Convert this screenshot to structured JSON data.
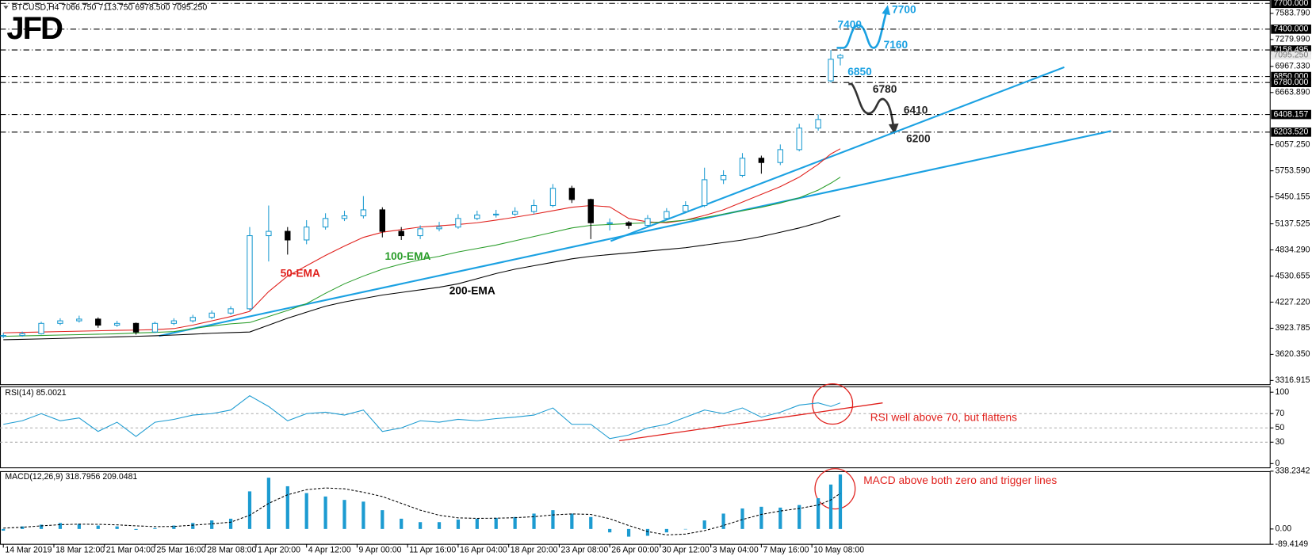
{
  "logo": "JFD",
  "chart_data": [
    {
      "type": "candlestick",
      "title": "BTCUSD,H4  7066.750 7113.750 6978.500 7095.250",
      "x": [
        0,
        6,
        12,
        18,
        24,
        30,
        36,
        42,
        48,
        54,
        60,
        66,
        72,
        78,
        84,
        90,
        96,
        102,
        108,
        114,
        120,
        126,
        132,
        138,
        144,
        150,
        156,
        162,
        168,
        174,
        180,
        186,
        192,
        198,
        204,
        210,
        216,
        222,
        228,
        234,
        240,
        246,
        252,
        258,
        262,
        265
      ],
      "open": [
        3830,
        3840,
        3860,
        3980,
        4010,
        4030,
        3960,
        3980,
        3880,
        3980,
        4010,
        4050,
        4100,
        4150,
        5000,
        5050,
        4950,
        5100,
        5200,
        5230,
        5300,
        5050,
        5000,
        5080,
        5100,
        5200,
        5240,
        5250,
        5280,
        5350,
        5550,
        5420,
        5150,
        5150,
        5120,
        5200,
        5280,
        5350,
        5650,
        5700,
        5900,
        5850,
        6000,
        6250,
        6800,
        7066.75
      ],
      "high": [
        3870,
        3885,
        4000,
        4040,
        4070,
        4050,
        4010,
        3990,
        4000,
        4040,
        4080,
        4130,
        4180,
        5100,
        5350,
        5100,
        5180,
        5260,
        5290,
        5460,
        5330,
        5100,
        5120,
        5160,
        5250,
        5290,
        5300,
        5330,
        5420,
        5600,
        5580,
        5430,
        5200,
        5170,
        5240,
        5320,
        5400,
        5790,
        5760,
        5960,
        5930,
        6060,
        6300,
        6408,
        7158,
        7113.75
      ],
      "low": [
        3810,
        3825,
        3850,
        3960,
        3990,
        3930,
        3940,
        3850,
        3870,
        3960,
        3990,
        4030,
        4080,
        4130,
        4700,
        4780,
        4900,
        5070,
        5170,
        5200,
        4980,
        4950,
        4960,
        5050,
        5080,
        5180,
        5210,
        5230,
        5250,
        5330,
        5380,
        4960,
        5060,
        5080,
        5100,
        5180,
        5260,
        5330,
        5600,
        5680,
        5720,
        5820,
        5980,
        6220,
        6780,
        6978.5
      ],
      "close": [
        3840,
        3860,
        3980,
        4010,
        4030,
        3960,
        3980,
        3880,
        3980,
        4010,
        4050,
        4100,
        4150,
        5000,
        5050,
        4950,
        5100,
        5200,
        5230,
        5300,
        5050,
        5000,
        5080,
        5100,
        5200,
        5240,
        5250,
        5280,
        5350,
        5550,
        5420,
        5150,
        5150,
        5120,
        5200,
        5280,
        5350,
        5650,
        5700,
        5900,
        5850,
        6000,
        6250,
        6350,
        7050,
        7095.25
      ],
      "up_color": "#1c9bd1",
      "down_color": "#000000",
      "series": [
        {
          "name": "50-EMA",
          "color": "#e0201c",
          "values": [
            3870,
            3875,
            3880,
            3885,
            3890,
            3895,
            3900,
            3903,
            3907,
            3920,
            3960,
            4010,
            4060,
            4120,
            4350,
            4530,
            4650,
            4770,
            4880,
            4980,
            5040,
            5070,
            5100,
            5115,
            5130,
            5150,
            5180,
            5215,
            5250,
            5290,
            5330,
            5350,
            5335,
            5200,
            5160,
            5150,
            5180,
            5235,
            5300,
            5390,
            5480,
            5570,
            5680,
            5830,
            5950,
            6010
          ]
        },
        {
          "name": "100-EMA",
          "color": "#2a9d2a",
          "values": [
            3830,
            3835,
            3840,
            3845,
            3850,
            3855,
            3860,
            3868,
            3875,
            3885,
            3920,
            3950,
            3975,
            3990,
            4060,
            4130,
            4210,
            4330,
            4440,
            4530,
            4610,
            4670,
            4720,
            4760,
            4810,
            4850,
            4890,
            4940,
            4990,
            5040,
            5090,
            5120,
            5130,
            5140,
            5150,
            5160,
            5180,
            5210,
            5250,
            5290,
            5330,
            5380,
            5440,
            5530,
            5610,
            5680
          ]
        },
        {
          "name": "200-EMA",
          "color": "#000000",
          "values": [
            3790,
            3795,
            3800,
            3806,
            3812,
            3818,
            3823,
            3830,
            3836,
            3845,
            3855,
            3865,
            3873,
            3880,
            3960,
            4040,
            4110,
            4180,
            4230,
            4270,
            4310,
            4340,
            4370,
            4400,
            4440,
            4500,
            4560,
            4610,
            4650,
            4690,
            4730,
            4760,
            4780,
            4800,
            4820,
            4840,
            4860,
            4890,
            4920,
            4950,
            4990,
            5040,
            5090,
            5150,
            5200,
            5230
          ]
        }
      ],
      "trendlines": [
        {
          "x": [
            49.3,
            350.7
          ],
          "values": [
            3834,
            6216
          ],
          "color": "#1ba1e2"
        },
        {
          "x": [
            192.3,
            335.9
          ],
          "values": [
            4937,
            6958
          ],
          "color": "#1ba1e2"
        }
      ],
      "xlim": [
        -1.06,
        401.1
      ],
      "ylim": [
        3268,
        7739
      ],
      "yticks": [
        {
          "value": 7583.79,
          "label": "7583.790"
        },
        {
          "value": 7279.99,
          "label": "7279.990"
        },
        {
          "value": 6967.33,
          "label": "6967.330"
        },
        {
          "value": 6663.89,
          "label": "6663.890"
        },
        {
          "value": 6057.25,
          "label": "6057.250"
        },
        {
          "value": 5753.59,
          "label": "5753.590"
        },
        {
          "value": 5450.155,
          "label": "5450.155"
        },
        {
          "value": 5137.525,
          "label": "5137.525"
        },
        {
          "value": 4834.29,
          "label": "4834.290"
        },
        {
          "value": 4530.655,
          "label": "4530.655"
        },
        {
          "value": 4227.22,
          "label": "4227.220"
        },
        {
          "value": 3923.785,
          "label": "3923.785"
        },
        {
          "value": 3620.35,
          "label": "3620.350"
        },
        {
          "value": 3316.915,
          "label": "3316.915"
        }
      ],
      "current_price": {
        "value": 7095.25,
        "label": "7095.250"
      },
      "levels": [
        {
          "value": 7700,
          "label": "7700.000"
        },
        {
          "value": 7400,
          "label": "7400.000"
        },
        {
          "value": 7158.495,
          "label": "7158.495"
        },
        {
          "value": 6850,
          "label": "6850.000"
        },
        {
          "value": 6780,
          "label": "6780.000"
        },
        {
          "value": 6408.157,
          "label": "6408.157"
        },
        {
          "value": 6203.52,
          "label": "6203.520"
        }
      ],
      "annotations": [
        {
          "text": "7700",
          "color": "#1ba1e2"
        },
        {
          "text": "7400",
          "color": "#1ba1e2"
        },
        {
          "text": "7160",
          "color": "#1ba1e2"
        },
        {
          "text": "6850",
          "color": "#1ba1e2"
        },
        {
          "text": "6780",
          "color": "#222222"
        },
        {
          "text": "6410",
          "color": "#222222"
        },
        {
          "text": "6200",
          "color": "#222222"
        }
      ]
    },
    {
      "type": "line",
      "title": "RSI(14) 85.0021",
      "color": "#1c9bd1",
      "x": [
        0,
        6,
        12,
        18,
        24,
        30,
        36,
        42,
        48,
        54,
        60,
        66,
        72,
        78,
        84,
        90,
        96,
        102,
        108,
        114,
        120,
        126,
        132,
        138,
        144,
        150,
        156,
        162,
        168,
        174,
        180,
        186,
        192,
        198,
        204,
        210,
        216,
        222,
        228,
        234,
        240,
        246,
        252,
        258,
        262,
        265
      ],
      "values": [
        55,
        60,
        70,
        60,
        64,
        45,
        58,
        38,
        58,
        62,
        68,
        70,
        75,
        95,
        80,
        60,
        70,
        72,
        68,
        75,
        45,
        50,
        60,
        58,
        62,
        60,
        63,
        65,
        68,
        78,
        55,
        55,
        35,
        40,
        50,
        55,
        65,
        75,
        70,
        78,
        65,
        72,
        82,
        85,
        80,
        85.0021
      ],
      "xlim": [
        -1.06,
        401.1
      ],
      "ylim": [
        -5.9,
        108.2
      ],
      "yticks": [
        100,
        70,
        50,
        30,
        0
      ],
      "levels": [
        70,
        50,
        30
      ],
      "trendlines": [
        {
          "x": [
            195,
            278.4
          ],
          "values": [
            32,
            85
          ],
          "color": "#e0201c"
        }
      ],
      "note": "RSI well above 70, but flattens"
    },
    {
      "type": "macd",
      "title": "MACD(12,26,9) 318.7956 209.0481",
      "color": "#1c9bd1",
      "signal_color": "#000000",
      "x": [
        0,
        6,
        12,
        18,
        24,
        30,
        36,
        42,
        48,
        54,
        60,
        66,
        72,
        78,
        84,
        90,
        96,
        102,
        108,
        114,
        120,
        126,
        132,
        138,
        144,
        150,
        156,
        162,
        168,
        174,
        180,
        186,
        192,
        198,
        204,
        210,
        216,
        222,
        228,
        234,
        240,
        246,
        252,
        258,
        262,
        265
      ],
      "values": [
        -10,
        15,
        25,
        35,
        30,
        20,
        15,
        -5,
        5,
        20,
        35,
        50,
        60,
        220,
        300,
        250,
        210,
        190,
        170,
        160,
        110,
        60,
        40,
        40,
        55,
        60,
        65,
        70,
        90,
        110,
        90,
        70,
        -20,
        -45,
        -40,
        -20,
        0,
        50,
        90,
        120,
        130,
        125,
        140,
        180,
        260,
        318.7956
      ],
      "signal": [
        5,
        10,
        18,
        25,
        28,
        27,
        24,
        18,
        14,
        15,
        22,
        30,
        40,
        80,
        150,
        200,
        230,
        240,
        235,
        215,
        190,
        150,
        110,
        80,
        65,
        62,
        63,
        66,
        72,
        82,
        88,
        85,
        60,
        20,
        -15,
        -35,
        -30,
        -10,
        20,
        55,
        85,
        105,
        120,
        140,
        170,
        209.0481
      ],
      "xlim": [
        -1.06,
        401.1
      ],
      "ylim": [
        -89.4149,
        338.2342
      ],
      "yticks": [
        {
          "value": 338.2342,
          "label": "338.2342"
        },
        {
          "value": 0,
          "label": "0.00"
        },
        {
          "value": -89.4149,
          "label": "-89.4149"
        }
      ],
      "xticks": [
        {
          "value": 0,
          "label": "14 Mar 2019"
        },
        {
          "value": 16,
          "label": "18 Mar 12:00"
        },
        {
          "value": 32,
          "label": "21 Mar 04:00"
        },
        {
          "value": 48,
          "label": "25 Mar 16:00"
        },
        {
          "value": 64,
          "label": "28 Mar 08:00"
        },
        {
          "value": 80,
          "label": "1 Apr 20:00"
        },
        {
          "value": 96,
          "label": "4 Apr 12:00"
        },
        {
          "value": 112,
          "label": "9 Apr 00:00"
        },
        {
          "value": 128,
          "label": "11 Apr 16:00"
        },
        {
          "value": 144,
          "label": "16 Apr 04:00"
        },
        {
          "value": 160,
          "label": "18 Apr 20:00"
        },
        {
          "value": 176,
          "label": "23 Apr 08:00"
        },
        {
          "value": 192,
          "label": "26 Apr 00:00"
        },
        {
          "value": 208,
          "label": "30 Apr 12:00"
        },
        {
          "value": 224,
          "label": "3 May 04:00"
        },
        {
          "value": 240,
          "label": "7 May 16:00"
        },
        {
          "value": 256,
          "label": "10 May 08:00"
        }
      ],
      "note": "MACD above both zero and trigger lines"
    }
  ]
}
